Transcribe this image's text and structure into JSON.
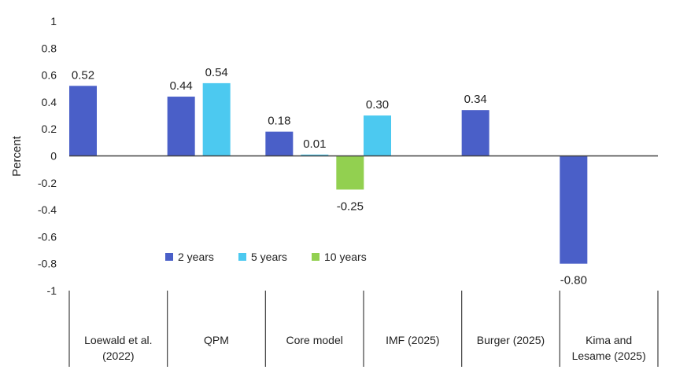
{
  "chart_data": {
    "type": "bar",
    "title": "",
    "xlabel": "",
    "ylabel": "Percent",
    "ylim": [
      -1,
      1
    ],
    "yticks": [
      1,
      0.8,
      0.6,
      0.4,
      0.2,
      0,
      -0.2,
      -0.4,
      -0.6,
      -0.8,
      -1
    ],
    "yticks_labels": [
      "1",
      "0.8",
      "0.6",
      "0.4",
      "0.2",
      "0",
      "-0.2",
      "-0.4",
      "-0.6",
      "-0.8",
      "-1"
    ],
    "grid": false,
    "legend_position": "bottom-center",
    "categories": [
      [
        "Loewald et al.",
        "(2022)"
      ],
      [
        "QPM"
      ],
      [
        "Core model"
      ],
      [
        "IMF (2025)"
      ],
      [
        "Burger (2025)"
      ],
      [
        "Kima and",
        "Lesame (2025)"
      ]
    ],
    "series": [
      {
        "name": "2 years",
        "color": "#4a5fc8",
        "values": [
          0.52,
          0.44,
          0.18,
          null,
          0.34,
          -0.8
        ],
        "labels": [
          "0.52",
          "0.44",
          "0.18",
          "",
          "0.34",
          "-0.80"
        ]
      },
      {
        "name": "5 years",
        "color": "#4cc9f0",
        "values": [
          null,
          0.54,
          0.01,
          0.3,
          null,
          null
        ],
        "labels": [
          "",
          "0.54",
          "0.01",
          "0.30",
          "",
          ""
        ]
      },
      {
        "name": "10 years",
        "color": "#92d050",
        "values": [
          null,
          null,
          -0.25,
          null,
          null,
          null
        ],
        "labels": [
          "",
          "",
          "-0.25",
          "",
          "",
          ""
        ]
      }
    ]
  }
}
